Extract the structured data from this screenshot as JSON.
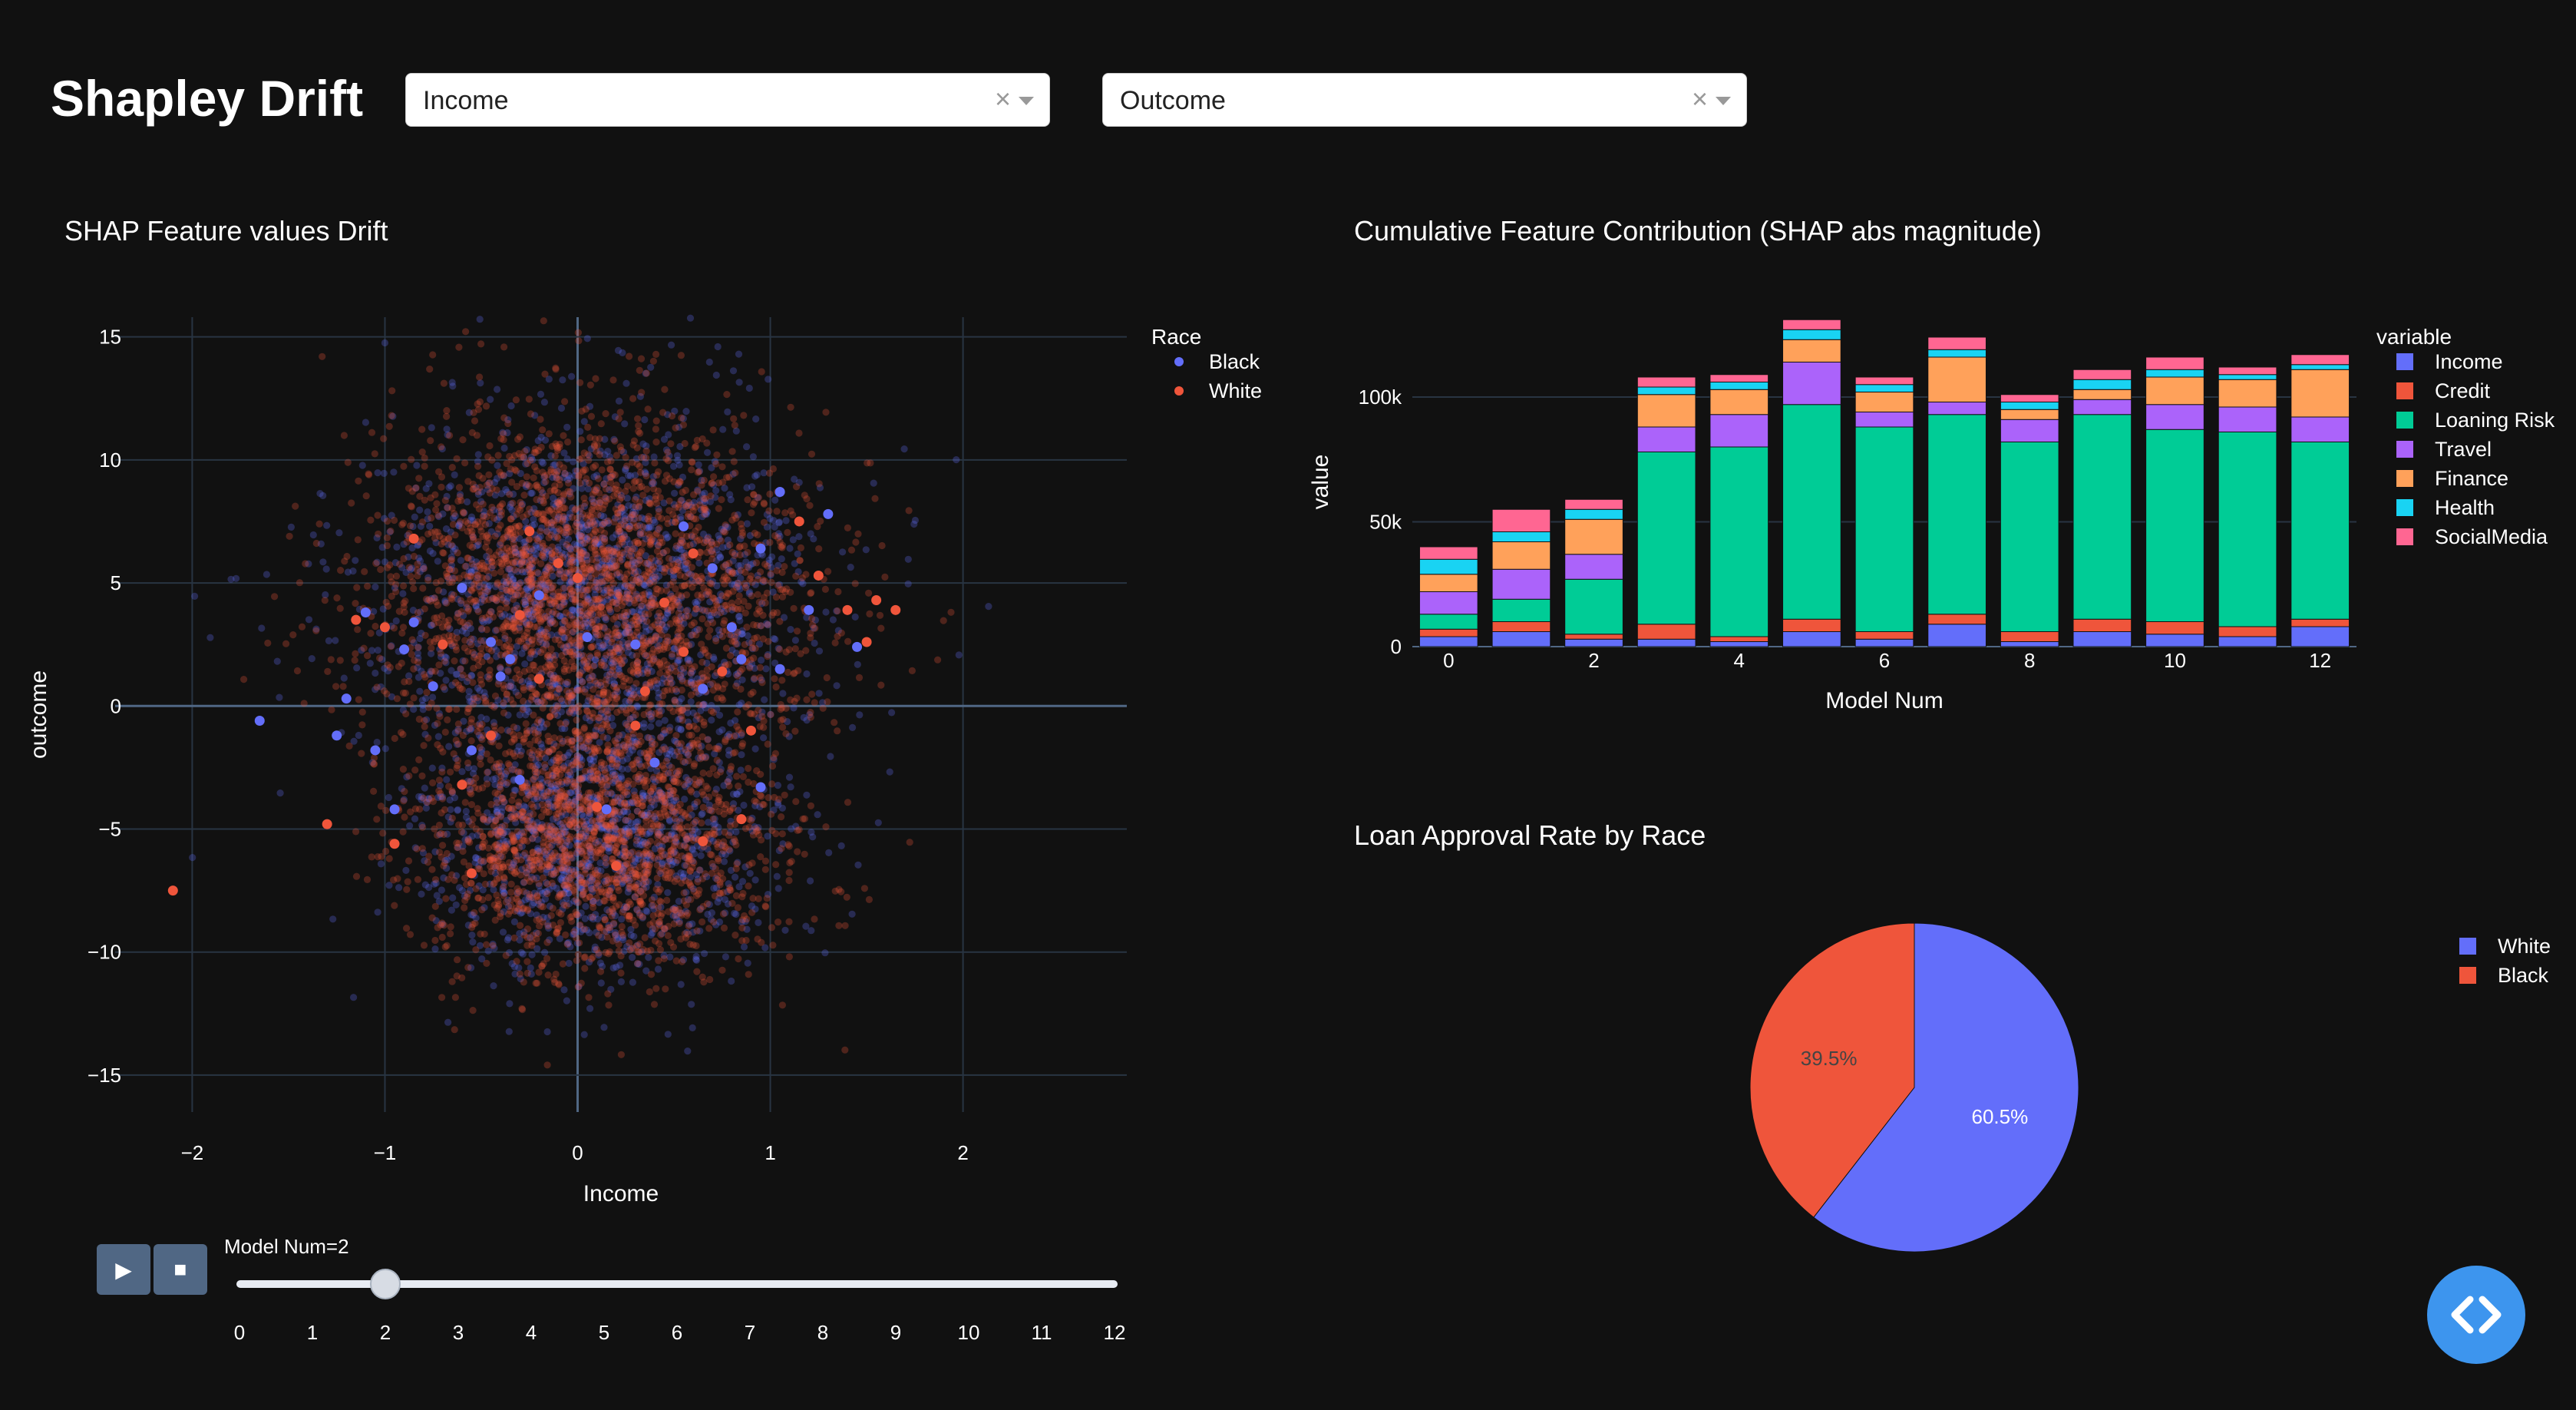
{
  "header": {
    "title": "Shapley Drift",
    "dropdown_x": {
      "value": "Income",
      "clear": "×"
    },
    "dropdown_y": {
      "value": "Outcome",
      "clear": "×"
    }
  },
  "scatter": {
    "title": "SHAP Feature values Drift",
    "legend_title": "Race",
    "colors": {
      "Black": "#636efa",
      "White": "#ef553b"
    }
  },
  "bar": {
    "title": "Cumulative Feature Contribution (SHAP abs magnitude)",
    "legend_title": "variable"
  },
  "pie": {
    "title": "Loan Approval Rate by Race"
  },
  "slider": {
    "play_icon": "▶",
    "stop_icon": "■",
    "current_label": "Model Num=2",
    "current_value": 2,
    "min": 0,
    "max": 12,
    "ticks": [
      "0",
      "1",
      "2",
      "3",
      "4",
      "5",
      "6",
      "7",
      "8",
      "9",
      "10",
      "11",
      "12"
    ]
  },
  "code_button": {
    "icon": "code-icon"
  },
  "chart_data": [
    {
      "type": "scatter",
      "title": "SHAP Feature values Drift",
      "xlabel": "Income",
      "ylabel": "outcome",
      "xlim": [
        -2.4,
        2.85
      ],
      "ylim": [
        -16.5,
        15.8
      ],
      "xticks": [
        -2,
        -1,
        0,
        1,
        2
      ],
      "xtick_labels": [
        "−2",
        "−1",
        "0",
        "1",
        "2"
      ],
      "yticks": [
        15,
        10,
        5,
        0,
        -5,
        -10,
        -15
      ],
      "ytick_labels": [
        "15",
        "10",
        "5",
        "0",
        "−5",
        "−10",
        "−15"
      ],
      "grid": true,
      "legend_position": "top-right",
      "series": [
        {
          "name": "Black",
          "color": "#636efa",
          "cloud_points": 2600
        },
        {
          "name": "White",
          "color": "#ef553b",
          "cloud_points": 4200
        }
      ],
      "highlighted_points": {
        "Black": [
          [
            -1.1,
            3.8
          ],
          [
            -0.9,
            2.3
          ],
          [
            -1.2,
            0.3
          ],
          [
            -1.25,
            -1.2
          ],
          [
            -1.05,
            -1.8
          ],
          [
            -0.95,
            -4.2
          ],
          [
            -0.85,
            3.4
          ],
          [
            -0.6,
            4.8
          ],
          [
            -0.45,
            2.6
          ],
          [
            -0.55,
            -1.8
          ],
          [
            -0.4,
            1.2
          ],
          [
            -0.3,
            -3.0
          ],
          [
            -0.2,
            4.5
          ],
          [
            0.05,
            2.8
          ],
          [
            0.15,
            -4.2
          ],
          [
            0.3,
            2.5
          ],
          [
            0.55,
            7.3
          ],
          [
            0.7,
            5.6
          ],
          [
            0.8,
            3.2
          ],
          [
            0.85,
            1.9
          ],
          [
            0.95,
            6.4
          ],
          [
            1.05,
            8.7
          ],
          [
            1.2,
            3.9
          ],
          [
            1.3,
            7.8
          ],
          [
            1.05,
            1.5
          ],
          [
            1.45,
            2.4
          ],
          [
            -0.75,
            0.8
          ],
          [
            0.4,
            -2.3
          ],
          [
            0.95,
            -3.3
          ],
          [
            -0.35,
            1.9
          ],
          [
            -1.65,
            -0.6
          ],
          [
            0.65,
            0.7
          ]
        ],
        "White": [
          [
            -2.1,
            -7.5
          ],
          [
            -1.3,
            -4.8
          ],
          [
            -1.15,
            3.5
          ],
          [
            -0.85,
            6.8
          ],
          [
            -0.7,
            2.5
          ],
          [
            -0.6,
            -3.2
          ],
          [
            -0.55,
            -6.8
          ],
          [
            -0.45,
            -1.2
          ],
          [
            -0.3,
            3.7
          ],
          [
            -0.25,
            7.1
          ],
          [
            -0.1,
            5.8
          ],
          [
            0.1,
            -4.1
          ],
          [
            0.2,
            -6.5
          ],
          [
            0.35,
            0.6
          ],
          [
            0.45,
            4.2
          ],
          [
            0.55,
            2.2
          ],
          [
            0.65,
            -5.5
          ],
          [
            0.75,
            1.4
          ],
          [
            0.85,
            -4.6
          ],
          [
            0.9,
            -1.0
          ],
          [
            1.15,
            7.5
          ],
          [
            1.25,
            5.3
          ],
          [
            1.4,
            3.9
          ],
          [
            1.5,
            2.6
          ],
          [
            1.55,
            4.3
          ],
          [
            1.65,
            3.9
          ],
          [
            -0.95,
            -5.6
          ],
          [
            -1.0,
            3.2
          ],
          [
            0.0,
            5.2
          ],
          [
            0.3,
            -0.8
          ],
          [
            -0.2,
            1.1
          ],
          [
            0.6,
            6.2
          ]
        ]
      }
    },
    {
      "type": "bar",
      "stacked": true,
      "title": "Cumulative Feature Contribution (SHAP abs magnitude)",
      "xlabel": "Model Num",
      "ylabel": "value",
      "categories": [
        0,
        1,
        2,
        3,
        4,
        5,
        6,
        7,
        8,
        9,
        10,
        11,
        12
      ],
      "xticks": [
        0,
        2,
        4,
        6,
        8,
        10,
        12
      ],
      "xtick_labels": [
        "0",
        "2",
        "4",
        "6",
        "8",
        "10",
        "12"
      ],
      "yticks": [
        0,
        50000,
        100000
      ],
      "ytick_labels": [
        "0",
        "50k",
        "100k"
      ],
      "ylim": [
        0,
        132000
      ],
      "legend_position": "right",
      "series": [
        {
          "name": "Income",
          "color": "#636efa",
          "values": [
            4000,
            6000,
            3000,
            3000,
            2000,
            6000,
            3000,
            9000,
            2000,
            6000,
            5000,
            4000,
            8000
          ]
        },
        {
          "name": "Credit",
          "color": "#ef553b",
          "values": [
            3000,
            4000,
            2000,
            6000,
            2000,
            5000,
            3000,
            4000,
            4000,
            5000,
            5000,
            4000,
            3000
          ]
        },
        {
          "name": "Loaning Risk",
          "color": "#00cc96",
          "values": [
            6000,
            9000,
            22000,
            69000,
            76000,
            86000,
            82000,
            80000,
            76000,
            82000,
            77000,
            78000,
            71000
          ]
        },
        {
          "name": "Travel",
          "color": "#ab63fa",
          "values": [
            9000,
            12000,
            10000,
            10000,
            13000,
            17000,
            6000,
            5000,
            9000,
            6000,
            10000,
            10000,
            10000
          ]
        },
        {
          "name": "Finance",
          "color": "#ffa15a",
          "values": [
            7000,
            11000,
            14000,
            13000,
            10000,
            9000,
            8000,
            18000,
            4000,
            4000,
            11000,
            11000,
            19000
          ]
        },
        {
          "name": "Health",
          "color": "#19d3f3",
          "values": [
            6000,
            4000,
            4000,
            3000,
            3000,
            4000,
            3000,
            3000,
            3000,
            4000,
            3000,
            2000,
            2000
          ]
        },
        {
          "name": "SocialMedia",
          "color": "#ff6692",
          "values": [
            5000,
            9000,
            4000,
            4000,
            3000,
            4000,
            3000,
            5000,
            3000,
            4000,
            5000,
            3000,
            4000
          ]
        }
      ]
    },
    {
      "type": "pie",
      "title": "Loan Approval Rate by Race",
      "legend_position": "right",
      "slices": [
        {
          "name": "White",
          "value": 60.5,
          "color": "#636efa",
          "label": "60.5%"
        },
        {
          "name": "Black",
          "value": 39.5,
          "color": "#ef553b",
          "label": "39.5%"
        }
      ]
    }
  ]
}
